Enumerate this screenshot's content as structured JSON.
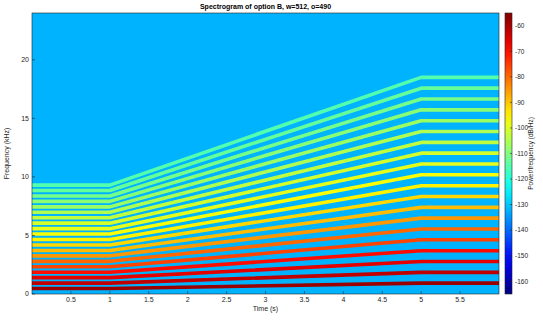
{
  "chart_data": {
    "type": "spectrogram",
    "title": "Spectrogram of option B, w=512, o=490",
    "x_label": "Time (s)",
    "y_label": "Frequency (kHz)",
    "xlim": [
      0,
      6
    ],
    "ylim": [
      0,
      24
    ],
    "xticks": [
      0.5,
      1,
      1.5,
      2,
      2.5,
      3,
      3.5,
      4,
      4.5,
      5,
      5.5
    ],
    "yticks": [
      0,
      5,
      10,
      15,
      20
    ],
    "background_level": -132,
    "colorbar": {
      "label": "Power/frequency (dB/Hz)",
      "lim": [
        -165,
        -55
      ],
      "ticks": [
        -60,
        -70,
        -80,
        -90,
        -100,
        -110,
        -120,
        -130,
        -140,
        -150,
        -160
      ]
    },
    "x": [
      0,
      1,
      5,
      6
    ],
    "series": [
      {
        "level": -58,
        "values": [
          0.47,
          0.47,
          0.93,
          0.93
        ]
      },
      {
        "level": -62,
        "values": [
          0.93,
          0.93,
          1.85,
          1.85
        ]
      },
      {
        "level": -66,
        "values": [
          1.4,
          1.4,
          2.78,
          2.78
        ]
      },
      {
        "level": -70,
        "values": [
          1.86,
          1.86,
          3.7,
          3.7
        ]
      },
      {
        "level": -76,
        "values": [
          2.33,
          2.33,
          4.63,
          4.63
        ]
      },
      {
        "level": -80,
        "values": [
          2.79,
          2.79,
          5.55,
          5.55
        ]
      },
      {
        "level": -85,
        "values": [
          3.26,
          3.26,
          6.48,
          6.48
        ]
      },
      {
        "level": -89,
        "values": [
          3.72,
          3.72,
          7.4,
          7.4
        ]
      },
      {
        "level": -92,
        "values": [
          4.19,
          4.19,
          8.33,
          8.33
        ]
      },
      {
        "level": -95,
        "values": [
          4.65,
          4.65,
          9.25,
          9.25
        ]
      },
      {
        "level": -97,
        "values": [
          5.12,
          5.12,
          10.18,
          10.18
        ]
      },
      {
        "level": -99,
        "values": [
          5.58,
          5.58,
          11.1,
          11.1
        ]
      },
      {
        "level": -101,
        "values": [
          6.05,
          6.05,
          12.03,
          12.03
        ]
      },
      {
        "level": -103,
        "values": [
          6.51,
          6.51,
          12.95,
          12.95
        ]
      },
      {
        "level": -105,
        "values": [
          6.98,
          6.98,
          13.88,
          13.88
        ]
      },
      {
        "level": -107,
        "values": [
          7.44,
          7.44,
          14.8,
          14.8
        ]
      },
      {
        "level": -109,
        "values": [
          7.91,
          7.91,
          15.73,
          15.73
        ]
      },
      {
        "level": -111,
        "values": [
          8.37,
          8.37,
          16.65,
          16.65
        ]
      },
      {
        "level": -113,
        "values": [
          8.84,
          8.84,
          17.58,
          17.58
        ]
      },
      {
        "level": -115,
        "values": [
          9.3,
          9.3,
          18.5,
          18.5
        ]
      }
    ]
  }
}
